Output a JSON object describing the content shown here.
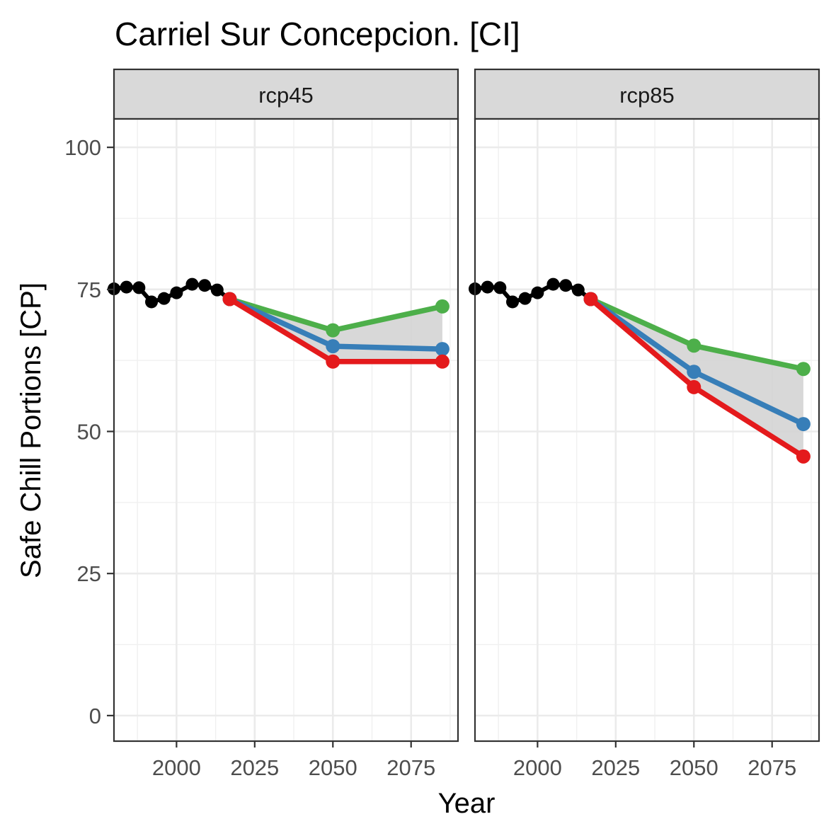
{
  "chart_data": {
    "type": "line",
    "title": "Carriel Sur Concepcion. [CI]",
    "xlabel": "Year",
    "ylabel": "Safe Chill Portions [CP]",
    "xlim": [
      1980,
      2090
    ],
    "ylim": [
      -4.5,
      105
    ],
    "x_ticks": [
      2000,
      2025,
      2050,
      2075
    ],
    "y_ticks": [
      0,
      25,
      50,
      75,
      100
    ],
    "grid": true,
    "legend": "none",
    "colors": {
      "observed": "#000000",
      "low": "#e41a1c",
      "mid": "#377eb8",
      "high": "#4daf4a",
      "band": "#d4d4d4"
    },
    "panels": [
      {
        "label": "rcp45",
        "observed": {
          "x": [
            1980,
            1984,
            1988,
            1992,
            1996,
            2000,
            2005,
            2009,
            2013,
            2017
          ],
          "y": [
            75.1,
            75.4,
            75.3,
            72.8,
            73.4,
            74.4,
            75.9,
            75.7,
            74.9,
            73.3
          ]
        },
        "series": [
          {
            "color_key": "low",
            "x": [
              2017,
              2050,
              2085
            ],
            "y": [
              73.3,
              62.3,
              62.3
            ]
          },
          {
            "color_key": "mid",
            "x": [
              2017,
              2050,
              2085
            ],
            "y": [
              73.3,
              65.0,
              64.5
            ]
          },
          {
            "color_key": "high",
            "x": [
              2017,
              2050,
              2085
            ],
            "y": [
              73.3,
              67.8,
              72.0
            ]
          }
        ]
      },
      {
        "label": "rcp85",
        "observed": {
          "x": [
            1980,
            1984,
            1988,
            1992,
            1996,
            2000,
            2005,
            2009,
            2013,
            2017
          ],
          "y": [
            75.1,
            75.4,
            75.3,
            72.8,
            73.4,
            74.4,
            75.9,
            75.7,
            74.9,
            73.3
          ]
        },
        "series": [
          {
            "color_key": "low",
            "x": [
              2017,
              2050,
              2085
            ],
            "y": [
              73.3,
              57.8,
              45.6
            ]
          },
          {
            "color_key": "mid",
            "x": [
              2017,
              2050,
              2085
            ],
            "y": [
              73.3,
              60.5,
              51.3
            ]
          },
          {
            "color_key": "high",
            "x": [
              2017,
              2050,
              2085
            ],
            "y": [
              73.3,
              65.1,
              61.0
            ]
          }
        ]
      }
    ]
  }
}
